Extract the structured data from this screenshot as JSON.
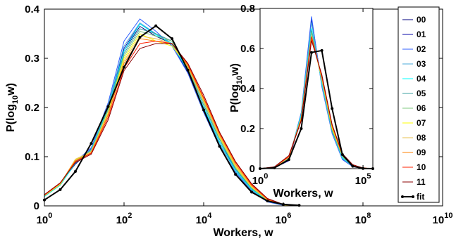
{
  "chart_data": [
    {
      "type": "line",
      "xscale": "log",
      "xlim": [
        1,
        10000000000
      ],
      "ylim": [
        0,
        0.4
      ],
      "xlabel": "Workers, w",
      "ylabel": "P(log10 w)",
      "ylabel_parts": {
        "base": "P(log",
        "sub": "10",
        "tail": "w)"
      },
      "x_ticks": [
        {
          "value": 1,
          "base": "10",
          "exp": "0"
        },
        {
          "value": 100,
          "base": "10",
          "exp": "2"
        },
        {
          "value": 10000,
          "base": "10",
          "exp": "4"
        },
        {
          "value": 1000000,
          "base": "10",
          "exp": "6"
        },
        {
          "value": 100000000,
          "base": "10",
          "exp": "8"
        },
        {
          "value": 10000000000,
          "base": "10",
          "exp": "10"
        }
      ],
      "y_ticks": [
        {
          "value": 0,
          "label": "0"
        },
        {
          "value": 0.1,
          "label": "0.1"
        },
        {
          "value": 0.2,
          "label": "0.2"
        },
        {
          "value": 0.3,
          "label": "0.3"
        },
        {
          "value": 0.4,
          "label": "0.4"
        }
      ],
      "x": [
        1,
        2.5,
        6,
        15,
        40,
        100,
        250,
        630,
        1600,
        4000,
        10000,
        25000,
        63000,
        160000,
        400000,
        1000000,
        2500000
      ],
      "series": [
        {
          "name": "00",
          "color": "#00007f",
          "values": [
            0.021,
            0.045,
            0.085,
            0.115,
            0.195,
            0.315,
            0.365,
            0.345,
            0.33,
            0.27,
            0.2,
            0.13,
            0.075,
            0.035,
            0.01,
            0.002,
            0
          ]
        },
        {
          "name": "01",
          "color": "#0a0aaa",
          "values": [
            0.021,
            0.045,
            0.086,
            0.116,
            0.2,
            0.32,
            0.37,
            0.35,
            0.33,
            0.272,
            0.198,
            0.125,
            0.072,
            0.033,
            0.009,
            0.002,
            0
          ]
        },
        {
          "name": "02",
          "color": "#2f5fff",
          "values": [
            0.02,
            0.044,
            0.09,
            0.118,
            0.21,
            0.335,
            0.38,
            0.355,
            0.325,
            0.27,
            0.19,
            0.12,
            0.068,
            0.03,
            0.008,
            0.001,
            0
          ]
        },
        {
          "name": "03",
          "color": "#4aa8d8",
          "values": [
            0.019,
            0.043,
            0.088,
            0.115,
            0.205,
            0.325,
            0.372,
            0.35,
            0.328,
            0.275,
            0.195,
            0.126,
            0.07,
            0.032,
            0.009,
            0.002,
            0
          ]
        },
        {
          "name": "04",
          "color": "#00ffff",
          "values": [
            0.019,
            0.042,
            0.087,
            0.113,
            0.2,
            0.315,
            0.37,
            0.348,
            0.33,
            0.275,
            0.2,
            0.13,
            0.072,
            0.034,
            0.01,
            0.002,
            0
          ]
        },
        {
          "name": "05",
          "color": "#3ca0a0",
          "values": [
            0.02,
            0.043,
            0.09,
            0.112,
            0.197,
            0.31,
            0.36,
            0.35,
            0.335,
            0.278,
            0.205,
            0.135,
            0.075,
            0.036,
            0.011,
            0.002,
            0
          ]
        },
        {
          "name": "06",
          "color": "#7fc87f",
          "values": [
            0.02,
            0.043,
            0.092,
            0.112,
            0.195,
            0.305,
            0.355,
            0.345,
            0.335,
            0.28,
            0.21,
            0.138,
            0.078,
            0.037,
            0.011,
            0.002,
            0
          ]
        },
        {
          "name": "07",
          "color": "#ffff00",
          "values": [
            0.021,
            0.044,
            0.094,
            0.11,
            0.19,
            0.3,
            0.35,
            0.335,
            0.325,
            0.285,
            0.215,
            0.14,
            0.08,
            0.038,
            0.012,
            0.002,
            0
          ]
        },
        {
          "name": "08",
          "color": "#e8c050",
          "values": [
            0.021,
            0.045,
            0.095,
            0.11,
            0.188,
            0.295,
            0.345,
            0.34,
            0.33,
            0.283,
            0.213,
            0.142,
            0.082,
            0.039,
            0.012,
            0.002,
            0
          ]
        },
        {
          "name": "09",
          "color": "#ff8000",
          "values": [
            0.022,
            0.046,
            0.092,
            0.108,
            0.185,
            0.29,
            0.34,
            0.335,
            0.33,
            0.285,
            0.218,
            0.145,
            0.085,
            0.041,
            0.013,
            0.003,
            0
          ]
        },
        {
          "name": "10",
          "color": "#ff2000",
          "values": [
            0.022,
            0.046,
            0.09,
            0.107,
            0.18,
            0.28,
            0.33,
            0.335,
            0.33,
            0.288,
            0.22,
            0.148,
            0.088,
            0.043,
            0.014,
            0.003,
            0
          ]
        },
        {
          "name": "11",
          "color": "#8b0000",
          "values": [
            0.023,
            0.047,
            0.088,
            0.105,
            0.175,
            0.275,
            0.32,
            0.33,
            0.33,
            0.29,
            0.225,
            0.15,
            0.09,
            0.045,
            0.015,
            0.003,
            0
          ]
        }
      ],
      "fit": {
        "name": "fit",
        "color": "#000000",
        "x": [
          1,
          2.5,
          6,
          15,
          40,
          100,
          250,
          630,
          1600,
          4000,
          10000,
          25000,
          63000,
          160000,
          400000,
          1000000,
          2500000
        ],
        "values": [
          0.012,
          0.033,
          0.07,
          0.127,
          0.202,
          0.282,
          0.343,
          0.366,
          0.34,
          0.276,
          0.195,
          0.121,
          0.064,
          0.028,
          0.01,
          0.003,
          0.001
        ]
      },
      "legend": {
        "placement": "right",
        "entries": [
          "00",
          "01",
          "02",
          "03",
          "04",
          "05",
          "06",
          "07",
          "08",
          "09",
          "10",
          "11",
          "fit"
        ]
      }
    },
    {
      "type": "line",
      "xscale": "log",
      "xlim": [
        1,
        300000
      ],
      "ylim": [
        0,
        0.8
      ],
      "xlabel": "Workers, w",
      "ylabel": "P(log10 w)",
      "ylabel_parts": {
        "base": "P(log",
        "sub": "10",
        "tail": "w)"
      },
      "x_ticks": [
        {
          "value": 1,
          "base": "10",
          "exp": "0"
        },
        {
          "value": 100000,
          "base": "10",
          "exp": "5"
        }
      ],
      "y_ticks": [
        {
          "value": 0,
          "label": "0"
        },
        {
          "value": 0.2,
          "label": "0.2"
        },
        {
          "value": 0.4,
          "label": "0.4"
        },
        {
          "value": 0.6,
          "label": "0.6"
        },
        {
          "value": 0.8,
          "label": "0.8"
        }
      ],
      "x": [
        1,
        5,
        25,
        100,
        316,
        1000,
        3160,
        10000,
        31600,
        100000,
        300000
      ],
      "series": [
        {
          "name": "00",
          "color": "#00007f",
          "values": [
            0,
            0.005,
            0.04,
            0.26,
            0.74,
            0.42,
            0.18,
            0.05,
            0.01,
            0.001,
            0
          ]
        },
        {
          "name": "01",
          "color": "#0a0aaa",
          "values": [
            0,
            0.005,
            0.04,
            0.27,
            0.75,
            0.42,
            0.18,
            0.05,
            0.01,
            0.001,
            0
          ]
        },
        {
          "name": "02",
          "color": "#2f5fff",
          "values": [
            0,
            0.005,
            0.045,
            0.28,
            0.76,
            0.41,
            0.175,
            0.045,
            0.01,
            0.001,
            0
          ]
        },
        {
          "name": "03",
          "color": "#4aa8d8",
          "values": [
            0,
            0.005,
            0.045,
            0.27,
            0.73,
            0.42,
            0.18,
            0.05,
            0.012,
            0.001,
            0
          ]
        },
        {
          "name": "04",
          "color": "#00ffff",
          "values": [
            0,
            0.006,
            0.05,
            0.27,
            0.7,
            0.43,
            0.19,
            0.055,
            0.013,
            0.002,
            0
          ]
        },
        {
          "name": "05",
          "color": "#3ca0a0",
          "values": [
            0,
            0.006,
            0.05,
            0.26,
            0.69,
            0.44,
            0.19,
            0.06,
            0.014,
            0.002,
            0
          ]
        },
        {
          "name": "06",
          "color": "#7fc87f",
          "values": [
            0,
            0.007,
            0.055,
            0.26,
            0.68,
            0.44,
            0.2,
            0.06,
            0.015,
            0.002,
            0
          ]
        },
        {
          "name": "07",
          "color": "#ffff00",
          "values": [
            0,
            0.007,
            0.055,
            0.25,
            0.66,
            0.45,
            0.2,
            0.065,
            0.016,
            0.002,
            0
          ]
        },
        {
          "name": "08",
          "color": "#e8c050",
          "values": [
            0,
            0.007,
            0.055,
            0.25,
            0.66,
            0.45,
            0.21,
            0.065,
            0.017,
            0.003,
            0
          ]
        },
        {
          "name": "09",
          "color": "#ff8000",
          "values": [
            0,
            0.008,
            0.06,
            0.25,
            0.65,
            0.46,
            0.21,
            0.07,
            0.018,
            0.003,
            0
          ]
        },
        {
          "name": "10",
          "color": "#ff2000",
          "values": [
            0,
            0.008,
            0.06,
            0.24,
            0.66,
            0.46,
            0.22,
            0.07,
            0.019,
            0.003,
            0
          ]
        },
        {
          "name": "11",
          "color": "#8b0000",
          "values": [
            0,
            0.009,
            0.065,
            0.24,
            0.64,
            0.47,
            0.22,
            0.075,
            0.02,
            0.003,
            0
          ]
        }
      ],
      "fit": {
        "name": "fit",
        "color": "#000000",
        "x": [
          1,
          5,
          25,
          100,
          316,
          1000,
          3160,
          10000,
          31600,
          100000,
          300000
        ],
        "values": [
          0,
          0.004,
          0.045,
          0.2,
          0.58,
          0.59,
          0.3,
          0.07,
          0.012,
          0.001,
          0
        ]
      }
    }
  ]
}
